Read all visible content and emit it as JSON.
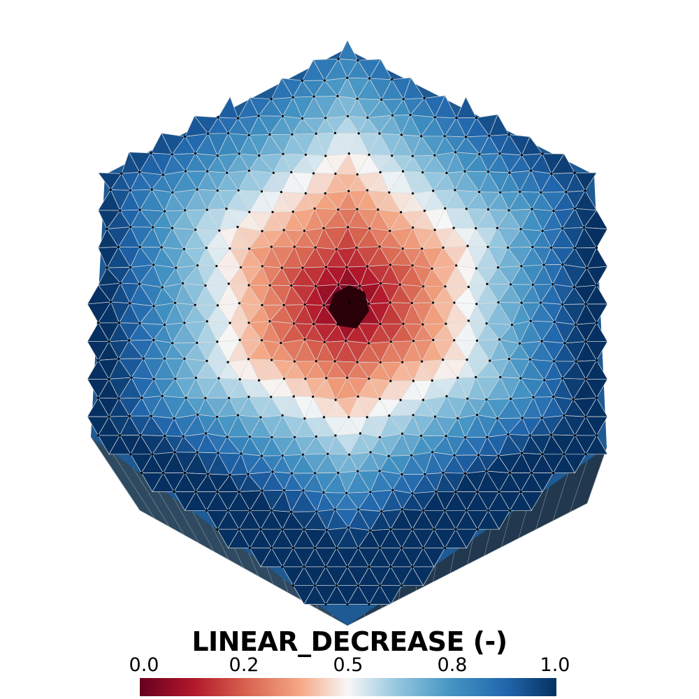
{
  "field": {
    "title": "LINEAR_DECREASE (-)",
    "range": [
      0.0,
      1.0
    ],
    "tick_labels": [
      "0.0",
      "0.2",
      "0.5",
      "0.8",
      "1.0"
    ],
    "tick_values": [
      0.0,
      0.25,
      0.5,
      0.75,
      1.0
    ],
    "colormap": {
      "name": "diverging red-white-blue",
      "stops": [
        {
          "value": 0.0,
          "color": "#67001f"
        },
        {
          "value": 0.13,
          "color": "#b2182b"
        },
        {
          "value": 0.25,
          "color": "#d6604d"
        },
        {
          "value": 0.38,
          "color": "#f4a582"
        },
        {
          "value": 0.5,
          "color": "#f7f7f7"
        },
        {
          "value": 0.62,
          "color": "#92c5de"
        },
        {
          "value": 0.75,
          "color": "#4393c3"
        },
        {
          "value": 0.88,
          "color": "#2166ac"
        },
        {
          "value": 1.0,
          "color": "#053061"
        }
      ]
    }
  },
  "mesh": {
    "shape": "hexagonal prism",
    "element_type": "tetrahedral",
    "edge_color": "#dcdcdc",
    "node_color": "#000000",
    "side_color": "#2a4256"
  }
}
